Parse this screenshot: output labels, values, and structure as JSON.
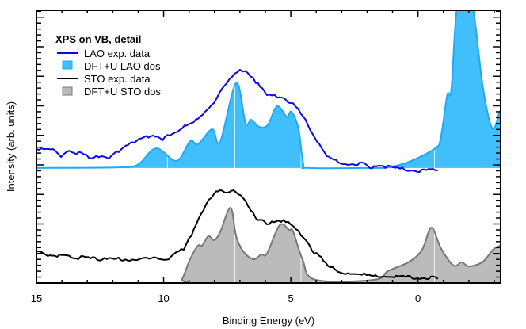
{
  "chart_data": {
    "type": "area",
    "title": "",
    "xlabel": "Binding Energy (eV)",
    "ylabel": "Intensity (arb. units)",
    "xlim": [
      15,
      -3.25
    ],
    "x_reversed": true,
    "ylim": [
      0,
      100
    ],
    "xticks": [
      15,
      10,
      5,
      0
    ],
    "yticks_labeled": false,
    "grid": false,
    "legend": {
      "placement": "top-left",
      "title": "XPS on VB, detail",
      "entries": [
        "LAO exp. data",
        "DFT+U LAO dos",
        "STO exp. data",
        "DFT+U STO dos"
      ]
    },
    "colors": {
      "lao_exp": "#0a0ae6",
      "lao_dos_fill": "#40bffc",
      "lao_dos_line": "#1ea9f2",
      "sto_exp": "#000000",
      "sto_dos_fill": "#bbbbbb",
      "sto_dos_line": "#777777"
    },
    "series": [
      {
        "name": "LAO exp. data",
        "kind": "line",
        "points": [
          [
            14.99,
            49.1
          ],
          [
            14.34,
            49.1
          ],
          [
            14.03,
            46.2
          ],
          [
            13.72,
            48.5
          ],
          [
            12.94,
            45.9
          ],
          [
            12.16,
            45.6
          ],
          [
            11.76,
            48.0
          ],
          [
            11.14,
            51.5
          ],
          [
            10.51,
            53.8
          ],
          [
            10.05,
            52.3
          ],
          [
            9.27,
            56.7
          ],
          [
            8.65,
            60.2
          ],
          [
            8.02,
            66.0
          ],
          [
            7.71,
            71.2
          ],
          [
            7.31,
            75.6
          ],
          [
            7.0,
            78.2
          ],
          [
            6.69,
            77.0
          ],
          [
            6.38,
            73.3
          ],
          [
            5.94,
            68.9
          ],
          [
            5.54,
            68.0
          ],
          [
            5.01,
            66.0
          ],
          [
            4.51,
            61.0
          ],
          [
            4.07,
            53.5
          ],
          [
            3.58,
            46.5
          ],
          [
            2.95,
            43.6
          ],
          [
            2.74,
            43.3
          ],
          [
            2.02,
            43.3
          ],
          [
            1.9,
            42.2
          ],
          [
            1.28,
            42.2
          ],
          [
            -0.06,
            40.7
          ],
          [
            -0.78,
            41.3
          ]
        ]
      },
      {
        "name": "DFT+U LAO dos",
        "kind": "fill",
        "baseline": 42.2,
        "markers": [
          9.85,
          7.2,
          4.6,
          -0.65
        ],
        "points": [
          [
            15,
            42.2
          ],
          [
            11.76,
            42.4
          ],
          [
            11.0,
            43.5
          ],
          [
            10.3,
            49.4
          ],
          [
            9.49,
            44.8
          ],
          [
            8.96,
            52.0
          ],
          [
            8.65,
            50.9
          ],
          [
            8.09,
            56.4
          ],
          [
            7.78,
            51.7
          ],
          [
            7.15,
            73.3
          ],
          [
            6.78,
            58.7
          ],
          [
            6.56,
            59.9
          ],
          [
            6.25,
            57.3
          ],
          [
            5.91,
            57.9
          ],
          [
            5.54,
            64.8
          ],
          [
            5.16,
            61.0
          ],
          [
            4.98,
            62.8
          ],
          [
            4.7,
            56.7
          ],
          [
            4.51,
            43.6
          ],
          [
            4.29,
            42.2
          ],
          [
            1.71,
            42.2
          ],
          [
            1.18,
            42.4
          ],
          [
            0.34,
            44.5
          ],
          [
            -0.68,
            49.4
          ],
          [
            -0.9,
            53.5
          ],
          [
            -1.15,
            68.9
          ],
          [
            -1.31,
            70.9
          ],
          [
            -1.52,
            100
          ],
          [
            -1.85,
            110
          ],
          [
            -2.18,
            100
          ],
          [
            -2.55,
            72
          ],
          [
            -2.92,
            56.7
          ],
          [
            -3.2,
            62.5
          ],
          [
            -3.25,
            63
          ]
        ]
      },
      {
        "name": "STO exp. data",
        "kind": "line",
        "points": [
          [
            14.99,
            11.6
          ],
          [
            14.87,
            11.6
          ],
          [
            14.56,
            9.9
          ],
          [
            13.62,
            9.3
          ],
          [
            12.6,
            8.4
          ],
          [
            11.04,
            8.4
          ],
          [
            9.8,
            8.7
          ],
          [
            9.21,
            12.2
          ],
          [
            8.9,
            17.4
          ],
          [
            8.43,
            26.7
          ],
          [
            8.02,
            32.6
          ],
          [
            7.78,
            34.0
          ],
          [
            7.5,
            33.1
          ],
          [
            7.25,
            34.0
          ],
          [
            6.87,
            31.1
          ],
          [
            6.38,
            23.8
          ],
          [
            5.94,
            21.5
          ],
          [
            5.38,
            22.4
          ],
          [
            5.01,
            21.5
          ],
          [
            4.6,
            17.4
          ],
          [
            4.07,
            10.8
          ],
          [
            3.45,
            5.8
          ],
          [
            2.95,
            3.5
          ],
          [
            2.02,
            2.9
          ],
          [
            1.4,
            2.3
          ],
          [
            -0.06,
            1.5
          ],
          [
            -0.78,
            1.5
          ]
        ]
      },
      {
        "name": "DFT+U STO dos",
        "kind": "fill",
        "baseline": 0,
        "markers": [
          7.2,
          4.6,
          -0.65
        ],
        "points": [
          [
            15,
            0
          ],
          [
            9.49,
            0
          ],
          [
            9.27,
            1.5
          ],
          [
            8.96,
            8.7
          ],
          [
            8.65,
            13.7
          ],
          [
            8.49,
            13.7
          ],
          [
            8.24,
            17.2
          ],
          [
            8.02,
            15.7
          ],
          [
            7.78,
            18.6
          ],
          [
            7.37,
            27.6
          ],
          [
            7.15,
            17.2
          ],
          [
            6.87,
            11.6
          ],
          [
            6.47,
            8.7
          ],
          [
            6.16,
            10.5
          ],
          [
            5.94,
            10.8
          ],
          [
            5.44,
            21.2
          ],
          [
            5.07,
            19.5
          ],
          [
            4.91,
            18.9
          ],
          [
            4.54,
            8.7
          ],
          [
            4.04,
            1.2
          ],
          [
            1.71,
            1.2
          ],
          [
            1.18,
            4.4
          ],
          [
            0.34,
            7.8
          ],
          [
            -0.16,
            12.2
          ],
          [
            -0.53,
            20.3
          ],
          [
            -0.9,
            12.8
          ],
          [
            -1.4,
            6.4
          ],
          [
            -1.71,
            7.6
          ],
          [
            -2.02,
            6.1
          ],
          [
            -2.55,
            7.8
          ],
          [
            -2.95,
            12.2
          ],
          [
            -3.23,
            13.7
          ]
        ]
      }
    ]
  }
}
